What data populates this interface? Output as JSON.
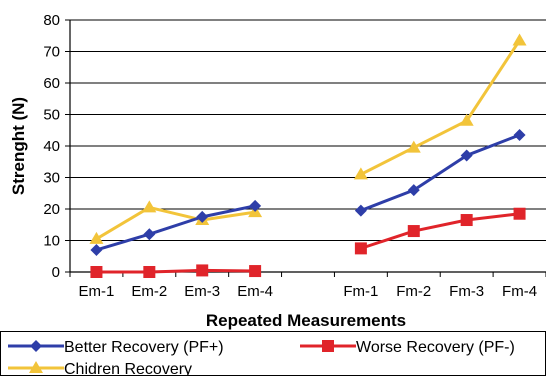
{
  "chart_data": {
    "type": "line",
    "title": "",
    "xlabel": "Repeated Measurements",
    "ylabel": "Strenght (N)",
    "ylim": [
      0,
      80
    ],
    "yticks": [
      0,
      10,
      20,
      30,
      40,
      50,
      60,
      70,
      80
    ],
    "categories": [
      "Em-1",
      "Em-2",
      "Em-3",
      "Em-4",
      "",
      "Fm-1",
      "Fm-2",
      "Fm-3",
      "Fm-4"
    ],
    "grid": "horizontal",
    "legend": "bottom",
    "series": [
      {
        "name": "Better Recovery (PF+)",
        "color": "#2E3EA8",
        "marker": "diamond",
        "values": [
          7,
          12,
          17.5,
          21,
          null,
          19.5,
          26,
          37,
          43.5
        ]
      },
      {
        "name": "Worse Recovery (PF-)",
        "color": "#E0242A",
        "marker": "square",
        "values": [
          0,
          0,
          0.5,
          0.3,
          null,
          7.5,
          13,
          16.5,
          18.5
        ]
      },
      {
        "name": "Chidren Recovery",
        "color": "#F2C43A",
        "marker": "triangle",
        "values": [
          10.5,
          20.5,
          16.5,
          19,
          null,
          31,
          39.5,
          48,
          73.5
        ]
      }
    ]
  }
}
